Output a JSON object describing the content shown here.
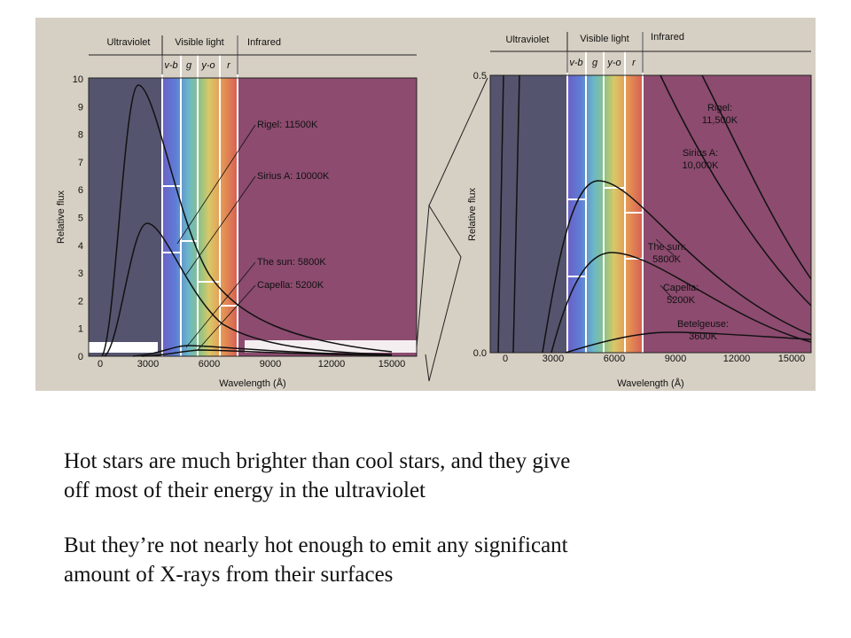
{
  "figure": {
    "left": {
      "bands": [
        "Ultraviolet",
        "Visible light",
        "Infrared"
      ],
      "sub_bands": [
        "v-b",
        "g",
        "y-o",
        "r"
      ],
      "yticks": [
        "0",
        "1",
        "2",
        "3",
        "4",
        "5",
        "6",
        "7",
        "8",
        "9",
        "10"
      ],
      "xticks": [
        "0",
        "3000",
        "6000",
        "9000",
        "12000",
        "15000"
      ],
      "ylabel": "Relative flux",
      "xlabel": "Wavelength (Å)",
      "curve_labels": [
        "Rigel: 11500K",
        "Sirius A: 10000K",
        "The sun: 5800K",
        "Capella: 5200K"
      ]
    },
    "right": {
      "bands": [
        "Ultraviolet",
        "Visible light",
        "Infrared"
      ],
      "sub_bands": [
        "v-b",
        "g",
        "y-o",
        "r"
      ],
      "yticks": [
        "0.5",
        "0.0"
      ],
      "xticks": [
        "0",
        "3000",
        "6000",
        "9000",
        "12000",
        "15000"
      ],
      "ylabel": "Relative flux",
      "xlabel": "Wavelength (Å)",
      "curve_labels": [
        [
          "Rigel:",
          "11,500K"
        ],
        [
          "Sirius A:",
          "10,000K"
        ],
        [
          "The sun:",
          "5800K"
        ],
        [
          "Capella:",
          "5200K"
        ],
        [
          "Betelgeuse:",
          "3600K"
        ]
      ]
    }
  },
  "text": {
    "paragraphs": [
      [
        "Hot stars are much brighter than cool stars, and they give",
        "off most of their energy in the ultraviolet"
      ],
      [
        "But they’re not nearly hot enough to emit any significant",
        "amount of X-rays from their surfaces"
      ]
    ]
  }
}
